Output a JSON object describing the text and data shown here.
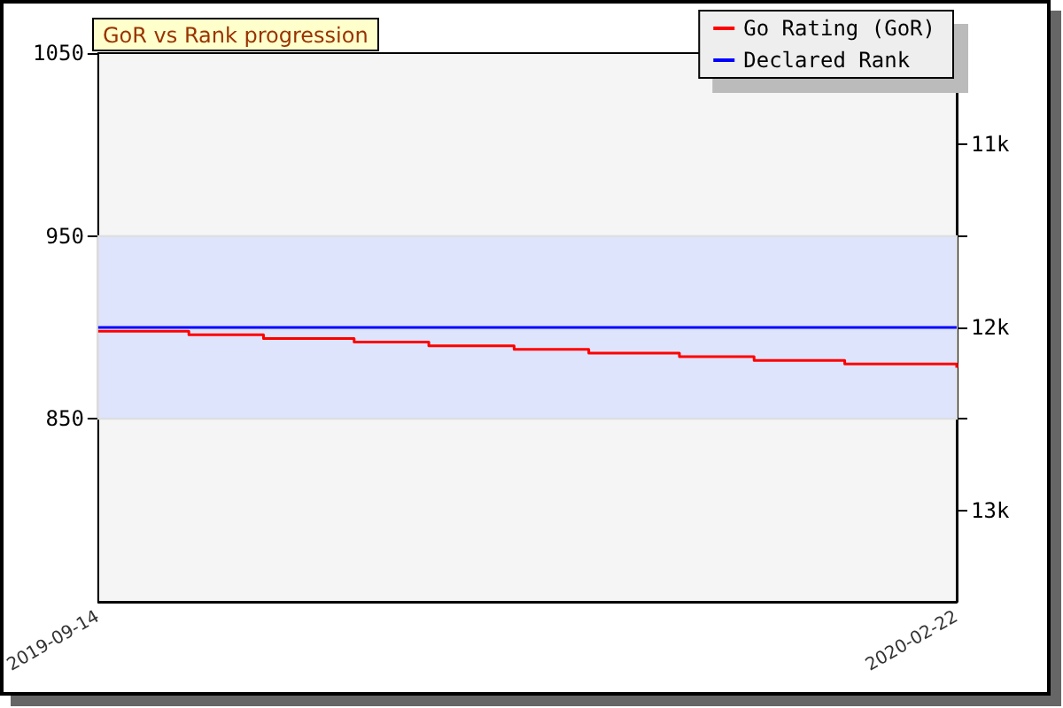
{
  "chart_data": {
    "type": "step",
    "title": "GoR vs Rank progression",
    "x": [
      "2019-09-14",
      "2019-10-01",
      "2019-10-15",
      "2019-11-01",
      "2019-11-15",
      "2019-12-01",
      "2019-12-15",
      "2020-01-01",
      "2020-01-15",
      "2020-02-01",
      "2020-02-22"
    ],
    "series": [
      {
        "name": "Go Rating (GoR)",
        "color": "#ff0000",
        "values": [
          898,
          896,
          894,
          892,
          890,
          888,
          886,
          884,
          882,
          880,
          878
        ]
      },
      {
        "name": "Declared Rank",
        "color": "#0000ff",
        "axis": "y2",
        "type": "line",
        "x": [
          "2019-09-14",
          "2020-02-22"
        ],
        "values": [
          12,
          12
        ]
      }
    ],
    "xlim": [
      "2019-09-14",
      "2020-02-22"
    ],
    "xticks": [
      "2019-09-14",
      "2020-02-22"
    ],
    "ylim": [
      750,
      1050
    ],
    "yticks": [
      850,
      950,
      1050
    ],
    "y2lim": [
      13.5,
      10.5
    ],
    "y2ticks": [
      {
        "value": 11,
        "label": "11k"
      },
      {
        "value": 11.5,
        "label": null
      },
      {
        "value": 12,
        "label": "12k"
      },
      {
        "value": 12.5,
        "label": null
      },
      {
        "value": 13,
        "label": "13k"
      }
    ],
    "bands": [
      {
        "axis": "y",
        "from": 850,
        "to": 950,
        "color": "#dde4fc"
      }
    ],
    "legend": "top right",
    "grid": false
  }
}
